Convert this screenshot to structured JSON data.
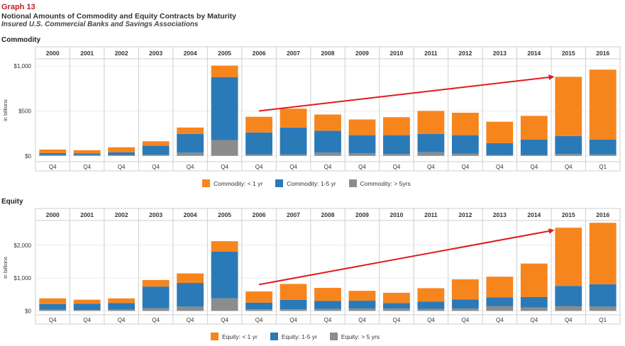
{
  "header": {
    "graph_number": "Graph 13",
    "title": "Notional Amounts of Commodity and Equity Contracts by Maturity",
    "subtitle": "Insured U.S. Commercial Banks and Savings Associations"
  },
  "colors": {
    "lt1": "#f7851e",
    "y1to5": "#2a7ab8",
    "gt5": "#8c8c8c",
    "arrow": "#e3191d"
  },
  "chart_data": [
    {
      "type": "bar",
      "stacked": true,
      "panel_title": "Commodity",
      "years": [
        "2000",
        "2001",
        "2002",
        "2003",
        "2004",
        "2005",
        "2006",
        "2007",
        "2008",
        "2009",
        "2010",
        "2011",
        "2012",
        "2013",
        "2014",
        "2015",
        "2016"
      ],
      "quarters": [
        "Q4",
        "Q4",
        "Q4",
        "Q4",
        "Q4",
        "Q4",
        "Q4",
        "Q4",
        "Q4",
        "Q4",
        "Q4",
        "Q4",
        "Q4",
        "Q4",
        "Q4",
        "Q4",
        "Q1"
      ],
      "ylabel": "in billions",
      "yticks": [
        {
          "value": 0,
          "label": "$0"
        },
        {
          "value": 500,
          "label": "$500"
        },
        {
          "value": 1000,
          "label": "$1,000"
        }
      ],
      "ylim": [
        -65,
        1080
      ],
      "series": [
        {
          "name": "Commodity: > 5yrs",
          "color_key": "gt5",
          "values": [
            8,
            8,
            10,
            12,
            35,
            175,
            15,
            15,
            35,
            30,
            20,
            40,
            25,
            10,
            10,
            20,
            15
          ]
        },
        {
          "name": "Commodity: 1-5 yr",
          "color_key": "y1to5",
          "values": [
            22,
            20,
            30,
            100,
            210,
            700,
            245,
            300,
            245,
            200,
            210,
            205,
            205,
            130,
            170,
            200,
            165
          ]
        },
        {
          "name": "Commodity: < 1 yr",
          "color_key": "lt1",
          "values": [
            40,
            35,
            55,
            50,
            70,
            130,
            175,
            210,
            180,
            175,
            200,
            255,
            250,
            240,
            265,
            660,
            780
          ]
        }
      ],
      "legend_position": "bottom-center",
      "annotation": "upward trend arrow from 2006 to 2015"
    },
    {
      "type": "bar",
      "stacked": true,
      "panel_title": "Equity",
      "years": [
        "2000",
        "2001",
        "2002",
        "2003",
        "2004",
        "2005",
        "2006",
        "2007",
        "2008",
        "2009",
        "2010",
        "2011",
        "2012",
        "2013",
        "2014",
        "2015",
        "2016"
      ],
      "quarters": [
        "Q4",
        "Q4",
        "Q4",
        "Q4",
        "Q4",
        "Q4",
        "Q4",
        "Q4",
        "Q4",
        "Q4",
        "Q4",
        "Q4",
        "Q4",
        "Q4",
        "Q4",
        "Q4",
        "Q1"
      ],
      "ylabel": "in billions",
      "yticks": [
        {
          "value": 0,
          "label": "$0"
        },
        {
          "value": 1000,
          "label": "$1,000"
        },
        {
          "value": 2000,
          "label": "$2,000"
        }
      ],
      "ylim": [
        -120,
        2750
      ],
      "series": [
        {
          "name": "Equity: > 5 yrs",
          "color_key": "gt5",
          "values": [
            40,
            30,
            40,
            80,
            130,
            380,
            50,
            50,
            60,
            70,
            70,
            60,
            70,
            140,
            100,
            140,
            130
          ]
        },
        {
          "name": "Equity: 1-5 yr",
          "color_key": "y1to5",
          "values": [
            170,
            190,
            200,
            660,
            720,
            1420,
            200,
            290,
            240,
            240,
            170,
            220,
            280,
            270,
            320,
            620,
            680
          ]
        },
        {
          "name": "Equity: < 1 yr",
          "color_key": "lt1",
          "values": [
            170,
            120,
            140,
            200,
            290,
            320,
            340,
            480,
            400,
            300,
            310,
            410,
            610,
            630,
            1020,
            1770,
            1870
          ]
        }
      ],
      "legend_position": "bottom-center",
      "annotation": "upward trend arrow from 2006 to 2015"
    }
  ]
}
